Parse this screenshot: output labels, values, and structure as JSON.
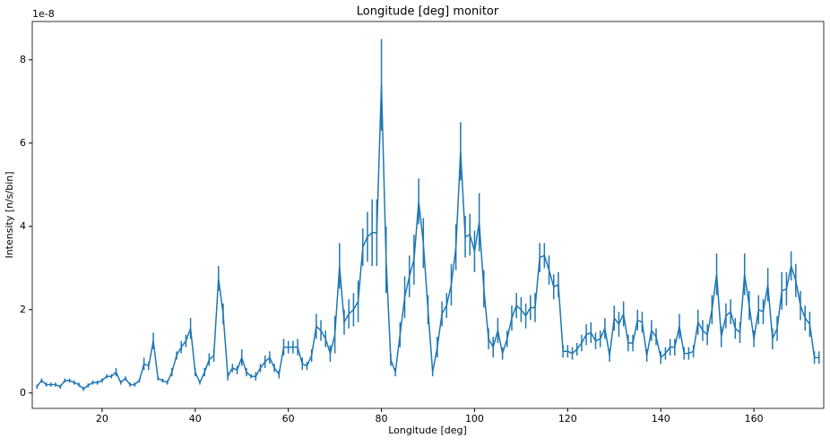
{
  "chart_data": {
    "type": "errorbar",
    "title": "Longitude [deg] monitor",
    "x_label": "Longitude [deg]",
    "y_label": "Intensity [n/s/bin]",
    "y_offset_label": "1e-8",
    "xlim": [
      5,
      175
    ],
    "ylim": [
      -0.37,
      8.92
    ],
    "xticks": [
      20,
      40,
      60,
      80,
      100,
      120,
      140,
      160
    ],
    "yticks": [
      0,
      2,
      4,
      6,
      8
    ],
    "grid": false,
    "series": [
      {
        "color": "#1f77b4",
        "x": [
          6,
          7,
          8,
          9,
          10,
          11,
          12,
          13,
          14,
          15,
          16,
          17,
          18,
          19,
          20,
          21,
          22,
          23,
          24,
          25,
          26,
          27,
          28,
          29,
          30,
          31,
          32,
          33,
          34,
          35,
          36,
          37,
          38,
          39,
          40,
          41,
          42,
          43,
          44,
          45,
          46,
          47,
          48,
          49,
          50,
          51,
          52,
          53,
          54,
          55,
          56,
          57,
          58,
          59,
          60,
          61,
          62,
          63,
          64,
          65,
          66,
          67,
          68,
          69,
          70,
          71,
          72,
          73,
          74,
          75,
          76,
          77,
          78,
          79,
          80,
          81,
          82,
          83,
          84,
          85,
          86,
          87,
          88,
          89,
          90,
          91,
          92,
          93,
          94,
          95,
          96,
          97,
          98,
          99,
          100,
          101,
          102,
          103,
          104,
          105,
          106,
          107,
          108,
          109,
          110,
          111,
          112,
          113,
          114,
          115,
          116,
          117,
          118,
          119,
          120,
          121,
          122,
          123,
          124,
          125,
          126,
          127,
          128,
          129,
          130,
          131,
          132,
          133,
          134,
          135,
          136,
          137,
          138,
          139,
          140,
          141,
          142,
          143,
          144,
          145,
          146,
          147,
          148,
          149,
          150,
          151,
          152,
          153,
          154,
          155,
          156,
          157,
          158,
          159,
          160,
          161,
          162,
          163,
          164,
          165,
          166,
          167,
          168,
          169,
          170,
          171,
          172,
          173,
          174
        ],
        "values": [
          0.15,
          0.3,
          0.2,
          0.2,
          0.2,
          0.15,
          0.3,
          0.3,
          0.25,
          0.2,
          0.1,
          0.18,
          0.25,
          0.25,
          0.3,
          0.4,
          0.4,
          0.5,
          0.25,
          0.35,
          0.2,
          0.2,
          0.3,
          0.7,
          0.65,
          1.25,
          0.35,
          0.3,
          0.25,
          0.5,
          0.9,
          1.1,
          1.25,
          1.55,
          0.5,
          0.25,
          0.5,
          0.8,
          0.9,
          2.75,
          1.9,
          0.4,
          0.6,
          0.55,
          0.85,
          0.5,
          0.4,
          0.4,
          0.6,
          0.75,
          0.85,
          0.6,
          0.45,
          1.1,
          1.1,
          1.1,
          1.1,
          0.7,
          0.65,
          0.9,
          1.6,
          1.5,
          1.3,
          0.95,
          1.4,
          3.05,
          1.7,
          1.9,
          2.0,
          2.2,
          3.5,
          3.75,
          3.85,
          3.85,
          7.4,
          3.2,
          0.8,
          0.5,
          1.4,
          2.3,
          2.8,
          3.2,
          4.6,
          3.6,
          2.0,
          0.5,
          1.1,
          1.9,
          2.1,
          2.6,
          3.5,
          5.8,
          3.75,
          3.8,
          3.4,
          4.1,
          2.5,
          1.3,
          1.1,
          1.5,
          0.95,
          1.3,
          1.8,
          2.1,
          2.0,
          1.85,
          2.05,
          2.05,
          3.25,
          3.3,
          2.95,
          2.55,
          2.6,
          1.0,
          1.0,
          0.95,
          1.05,
          1.2,
          1.4,
          1.45,
          1.25,
          1.3,
          1.55,
          0.9,
          1.8,
          1.65,
          1.9,
          1.2,
          1.2,
          1.75,
          1.7,
          0.9,
          1.5,
          1.35,
          0.85,
          0.95,
          1.1,
          1.1,
          1.6,
          0.95,
          0.95,
          1.0,
          1.7,
          1.5,
          1.4,
          2.0,
          2.85,
          1.35,
          1.85,
          1.95,
          1.55,
          1.45,
          2.85,
          2.1,
          1.3,
          2.0,
          1.95,
          2.6,
          1.3,
          1.55,
          2.45,
          2.5,
          3.05,
          2.7,
          2.1,
          1.8,
          1.65,
          0.85,
          0.85
        ],
        "errors": [
          0.05,
          0.05,
          0.05,
          0.05,
          0.05,
          0.05,
          0.05,
          0.05,
          0.05,
          0.05,
          0.05,
          0.05,
          0.05,
          0.05,
          0.05,
          0.05,
          0.05,
          0.1,
          0.05,
          0.05,
          0.05,
          0.05,
          0.05,
          0.15,
          0.1,
          0.2,
          0.05,
          0.05,
          0.05,
          0.1,
          0.1,
          0.15,
          0.15,
          0.25,
          0.1,
          0.05,
          0.1,
          0.15,
          0.15,
          0.3,
          0.25,
          0.1,
          0.1,
          0.1,
          0.2,
          0.1,
          0.05,
          0.1,
          0.1,
          0.15,
          0.15,
          0.1,
          0.1,
          0.2,
          0.15,
          0.15,
          0.2,
          0.15,
          0.1,
          0.15,
          0.3,
          0.25,
          0.2,
          0.2,
          0.45,
          0.55,
          0.3,
          0.35,
          0.4,
          0.5,
          0.45,
          0.6,
          0.8,
          0.8,
          1.1,
          0.8,
          0.15,
          0.1,
          0.3,
          0.5,
          0.5,
          0.6,
          0.55,
          0.6,
          0.35,
          0.1,
          0.25,
          0.3,
          0.3,
          0.5,
          0.55,
          0.7,
          0.5,
          0.5,
          0.5,
          0.7,
          0.45,
          0.25,
          0.25,
          0.3,
          0.15,
          0.2,
          0.3,
          0.3,
          0.3,
          0.3,
          0.3,
          0.35,
          0.35,
          0.3,
          0.35,
          0.3,
          0.3,
          0.15,
          0.15,
          0.15,
          0.15,
          0.2,
          0.25,
          0.25,
          0.2,
          0.2,
          0.25,
          0.15,
          0.3,
          0.3,
          0.3,
          0.2,
          0.2,
          0.25,
          0.25,
          0.15,
          0.25,
          0.2,
          0.15,
          0.15,
          0.2,
          0.2,
          0.3,
          0.15,
          0.15,
          0.15,
          0.3,
          0.25,
          0.25,
          0.35,
          0.5,
          0.25,
          0.3,
          0.3,
          0.25,
          0.25,
          0.5,
          0.35,
          0.2,
          0.35,
          0.3,
          0.4,
          0.25,
          0.3,
          0.45,
          0.4,
          0.35,
          0.4,
          0.35,
          0.3,
          0.3,
          0.15,
          0.15
        ]
      }
    ]
  }
}
